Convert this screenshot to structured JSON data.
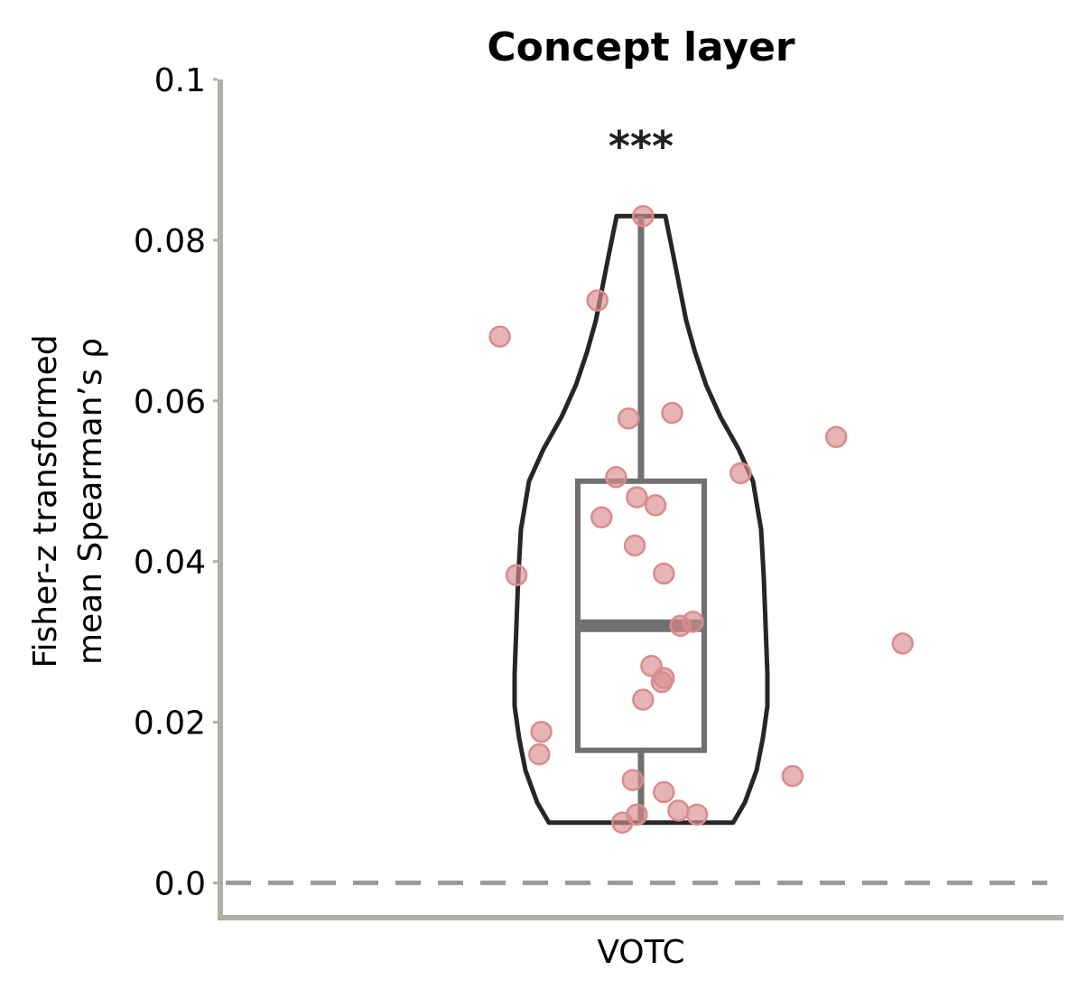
{
  "chart_data": {
    "type": "violin",
    "title": "Concept layer",
    "ylabel_line1": "Fisher-z transformed",
    "ylabel_line2": "mean Spearman’s ρ",
    "xlabel": "",
    "categories": [
      "VOTC"
    ],
    "ylim": [
      -0.004,
      0.1
    ],
    "yticks": [
      0.0,
      0.02,
      0.04,
      0.06,
      0.08,
      0.1
    ],
    "ytick_labels": [
      "0.0",
      "0.02",
      "0.04",
      "0.06",
      "0.08",
      "0.1"
    ],
    "reference_line": 0.0,
    "significance": "***",
    "box": {
      "min": 0.0075,
      "q1": 0.0165,
      "median": 0.032,
      "q3": 0.05,
      "max": 0.083
    },
    "violin_range": [
      0.0075,
      0.083
    ],
    "points": [
      {
        "x": -0.68,
        "y": 0.068
      },
      {
        "x": -0.21,
        "y": 0.0725
      },
      {
        "x": 0.01,
        "y": 0.083
      },
      {
        "x": -0.06,
        "y": 0.0578
      },
      {
        "x": 0.15,
        "y": 0.0585
      },
      {
        "x": 0.94,
        "y": 0.0555
      },
      {
        "x": 0.48,
        "y": 0.051
      },
      {
        "x": -0.12,
        "y": 0.0505
      },
      {
        "x": -0.02,
        "y": 0.048
      },
      {
        "x": 0.07,
        "y": 0.047
      },
      {
        "x": -0.19,
        "y": 0.0455
      },
      {
        "x": -0.03,
        "y": 0.042
      },
      {
        "x": -0.6,
        "y": 0.0383
      },
      {
        "x": 0.11,
        "y": 0.0385
      },
      {
        "x": 0.25,
        "y": 0.0325
      },
      {
        "x": 0.19,
        "y": 0.032
      },
      {
        "x": 1.26,
        "y": 0.0298
      },
      {
        "x": 0.05,
        "y": 0.027
      },
      {
        "x": 0.11,
        "y": 0.0255
      },
      {
        "x": 0.1,
        "y": 0.025
      },
      {
        "x": 0.01,
        "y": 0.0228
      },
      {
        "x": -0.48,
        "y": 0.0188
      },
      {
        "x": -0.49,
        "y": 0.016
      },
      {
        "x": 0.73,
        "y": 0.0133
      },
      {
        "x": -0.04,
        "y": 0.0128
      },
      {
        "x": 0.11,
        "y": 0.0113
      },
      {
        "x": 0.18,
        "y": 0.009
      },
      {
        "x": 0.27,
        "y": 0.0085
      },
      {
        "x": -0.02,
        "y": 0.0085
      },
      {
        "x": -0.09,
        "y": 0.0075
      }
    ],
    "colors": {
      "points": "#d98c8c",
      "violin_outline": "#262626",
      "box": "#707070",
      "spine": "#b3aea8",
      "reference_line": "#999999"
    }
  }
}
